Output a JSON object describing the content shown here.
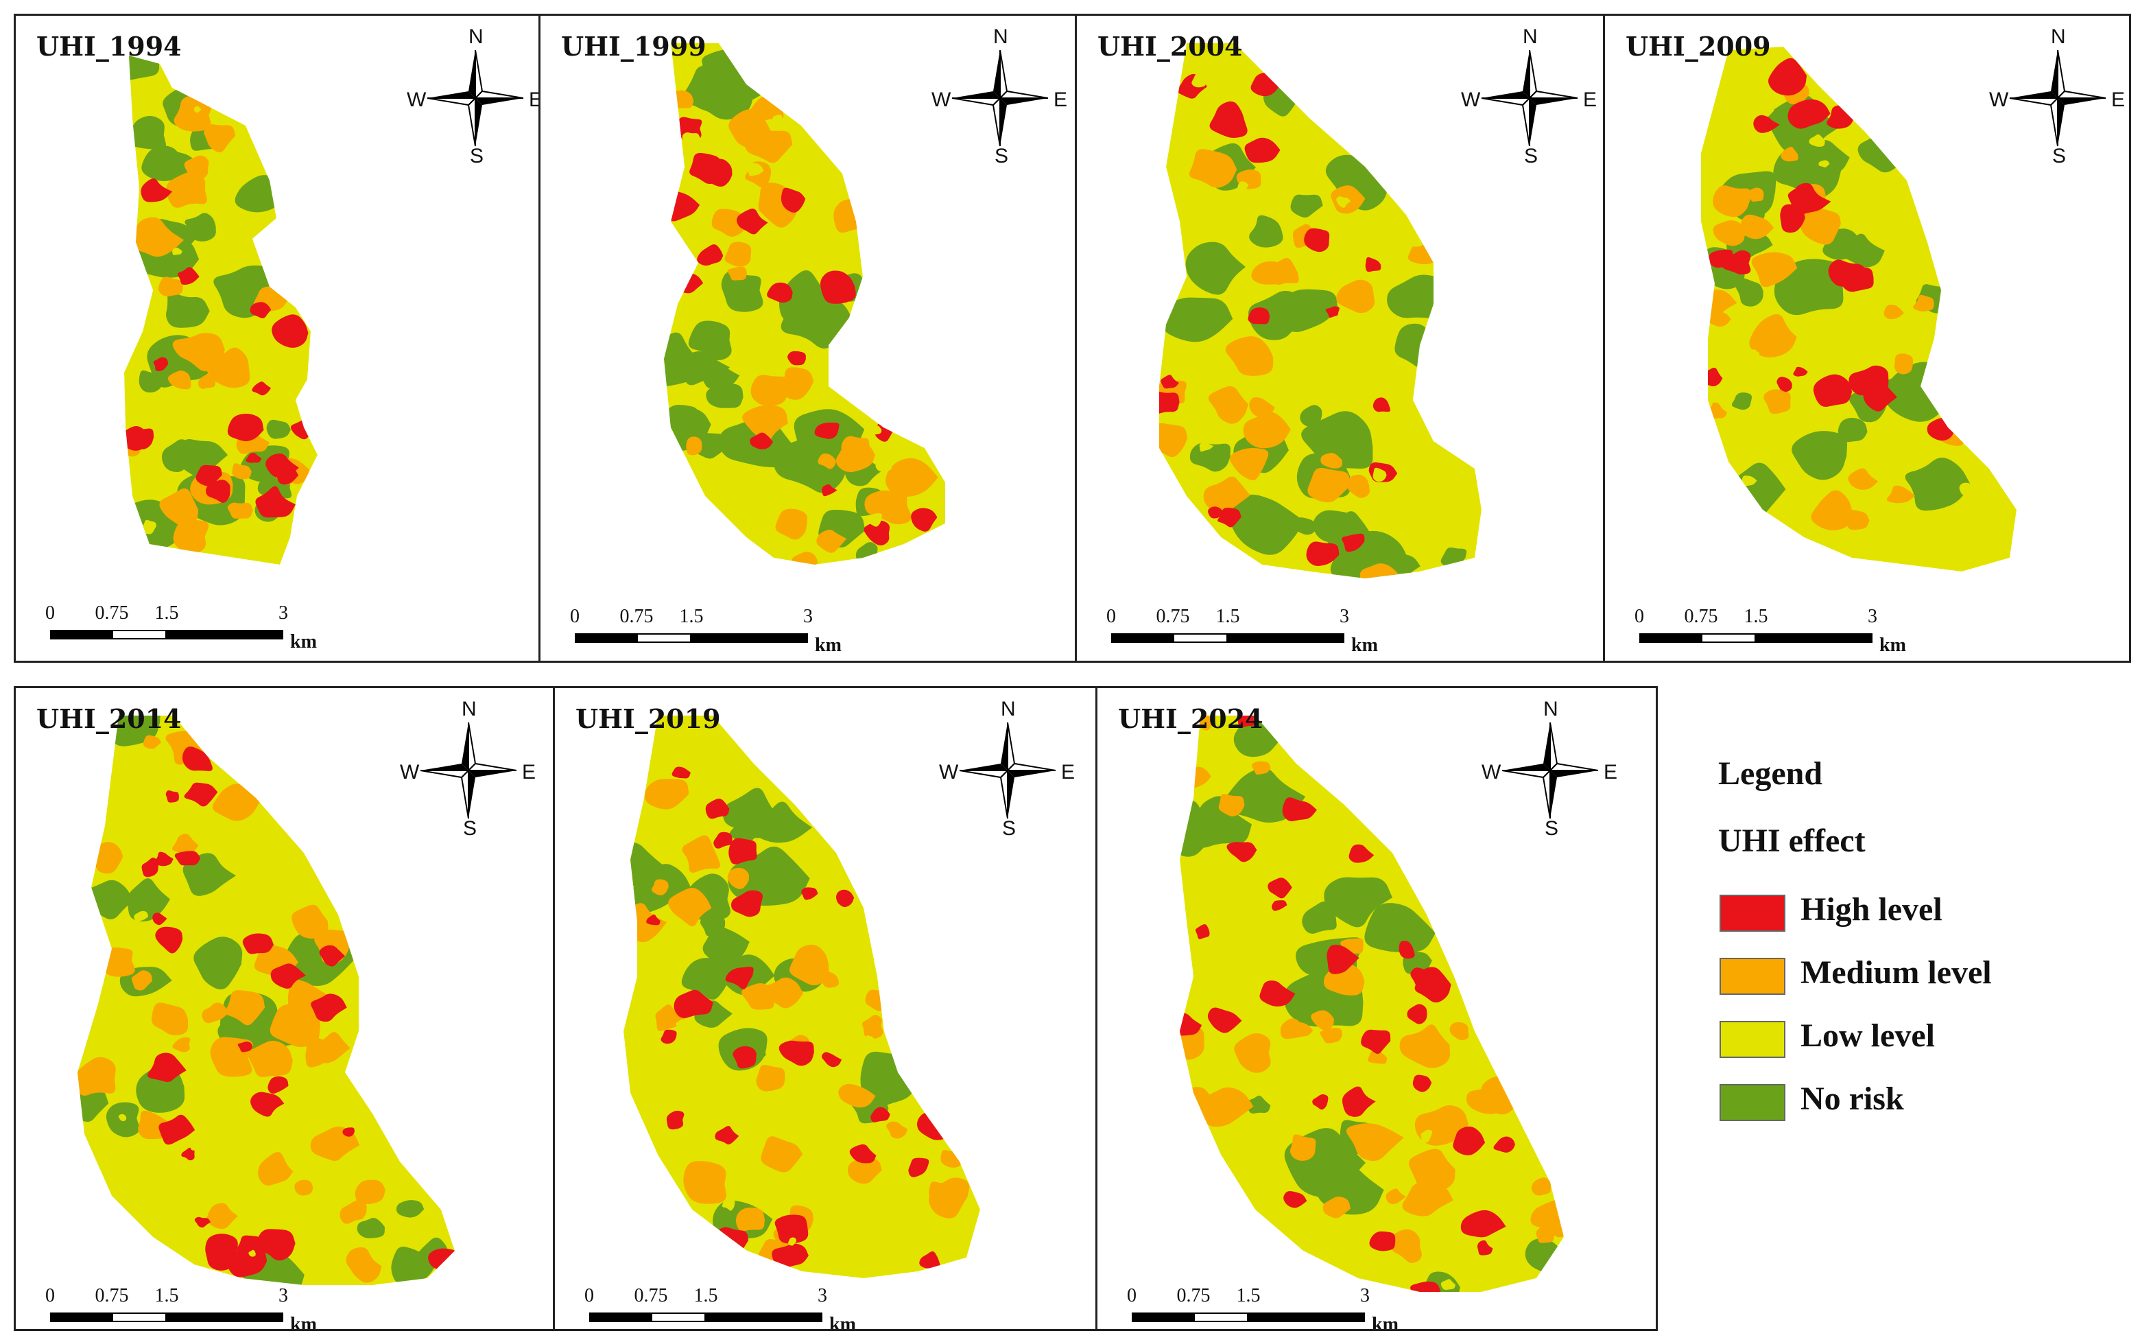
{
  "colors": {
    "high": "#e8141a",
    "medium": "#f9a800",
    "low": "#e2e400",
    "norisk": "#6aa31a"
  },
  "compass_labels": {
    "n": "N",
    "s": "S",
    "e": "E",
    "w": "W"
  },
  "scale": {
    "ticks": [
      "0",
      "0.75",
      "1.5",
      "3"
    ],
    "unit": "km"
  },
  "panels": [
    {
      "title": "UHI_1994",
      "intensity": 0.45
    },
    {
      "title": "UHI_1999",
      "intensity": 0.55
    },
    {
      "title": "UHI_2004",
      "intensity": 0.5
    },
    {
      "title": "UHI_2009",
      "intensity": 0.55
    },
    {
      "title": "UHI_2014",
      "intensity": 0.85
    },
    {
      "title": "UHI_2019",
      "intensity": 0.8
    },
    {
      "title": "UHI_2024",
      "intensity": 0.9
    }
  ],
  "legend": {
    "title": "Legend",
    "subtitle": "UHI effect",
    "items": [
      {
        "label": "High level",
        "color_key": "high"
      },
      {
        "label": "Medium level",
        "color_key": "medium"
      },
      {
        "label": "Low level",
        "color_key": "low"
      },
      {
        "label": "No risk",
        "color_key": "norisk"
      }
    ]
  }
}
